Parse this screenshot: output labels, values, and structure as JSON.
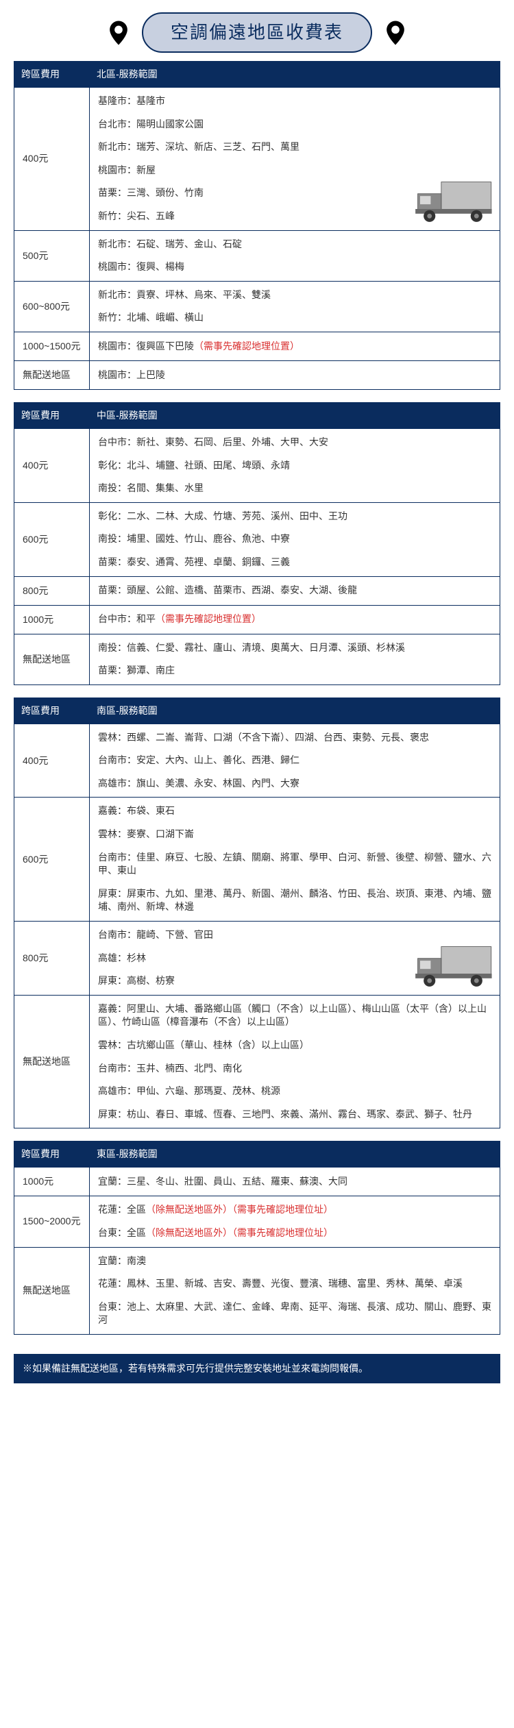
{
  "title": "空調偏遠地區收費表",
  "columns": {
    "fee": "跨區費用",
    "north": "北區-服務範圍",
    "central": "中區-服務範圍",
    "south": "南區-服務範圍",
    "east": "東區-服務範圍"
  },
  "colors": {
    "header_bg": "#0a2c5e",
    "header_text": "#ffffff",
    "title_bg": "#c8d0e0",
    "title_text": "#0a2c5e",
    "border": "#0a2c5e",
    "note_red": "#d93030",
    "truck": "#8a8a8a",
    "truck_body": "#c0c0c0"
  },
  "north": [
    {
      "fee": "400元",
      "truck": true,
      "areas": [
        "基隆市：基隆市",
        "台北市：陽明山國家公園",
        "新北市：瑞芳、深坑、新店、三芝、石門、萬里",
        "桃園市：新屋",
        "苗栗：三灣、頭份、竹南",
        "新竹：尖石、五峰"
      ]
    },
    {
      "fee": "500元",
      "areas": [
        "新北市：石碇、瑞芳、金山、石碇",
        "桃園市：復興、楊梅"
      ]
    },
    {
      "fee": "600~800元",
      "areas": [
        "新北市：貢寮、坪林、烏來、平溪、雙溪",
        "新竹：北埔、峨嵋、橫山"
      ]
    },
    {
      "fee": "1000~1500元",
      "areas": [
        {
          "text": "桃園市：復興區下巴陵",
          "note": "（需事先確認地理位置）"
        }
      ]
    },
    {
      "fee": "無配送地區",
      "areas": [
        "桃園市：上巴陵"
      ]
    }
  ],
  "central": [
    {
      "fee": "400元",
      "areas": [
        "台中市：新社、東勢、石岡、后里、外埔、大甲、大安",
        "彰化：北斗、埔鹽、社頭、田尾、埤頭、永靖",
        "南投：名間、集集、水里"
      ]
    },
    {
      "fee": "600元",
      "areas": [
        "彰化：二水、二林、大成、竹塘、芳苑、溪州、田中、王功",
        "南投：埔里、國姓、竹山、鹿谷、魚池、中寮",
        "苗栗：泰安、通霄、苑裡、卓蘭、銅鑼、三義"
      ]
    },
    {
      "fee": "800元",
      "areas": [
        "苗栗：頭屋、公館、造橋、苗栗市、西湖、泰安、大湖、後龍"
      ]
    },
    {
      "fee": "1000元",
      "areas": [
        {
          "text": "台中市：和平",
          "note": "（需事先確認地理位置）"
        }
      ]
    },
    {
      "fee": "無配送地區",
      "areas": [
        "南投：信義、仁愛、霧社、廬山、清境、奧萬大、日月潭、溪頭、杉林溪",
        "苗栗：獅潭、南庄"
      ]
    }
  ],
  "south": [
    {
      "fee": "400元",
      "areas": [
        "雲林：西螺、二崙、崙背、口湖（不含下崙）、四湖、台西、東勢、元長、褒忠",
        "台南市：安定、大內、山上、善化、西港、歸仁",
        "高雄市：旗山、美濃、永安、林園、內門、大寮"
      ]
    },
    {
      "fee": "600元",
      "areas": [
        "嘉義：布袋、東石",
        "雲林：麥寮、口湖下崙",
        "台南市：佳里、麻豆、七股、左鎮、關廟、將軍、學甲、白河、新營、後壁、柳營、鹽水、六甲、東山",
        "屏東：屏東市、九如、里港、萬丹、新園、潮州、麟洛、竹田、長治、崁頂、東港、內埔、鹽埔、南州、新埤、林邊"
      ]
    },
    {
      "fee": "800元",
      "truck": true,
      "areas": [
        "台南市：龍崎、下營、官田",
        "高雄：杉林",
        "屏東：高樹、枋寮"
      ]
    },
    {
      "fee": "無配送地區",
      "areas": [
        "嘉義：阿里山、大埔、番路鄉山區（觸口（不含）以上山區）、梅山山區（太平（含）以上山區）、竹崎山區（樟音瀑布（不含）以上山區）",
        "雲林：古坑鄉山區（華山、桂林（含）以上山區）",
        "台南市：玉井、楠西、北門、南化",
        "高雄市：甲仙、六龜、那瑪夏、茂林、桃源",
        "屏東：枋山、春日、車城、恆春、三地門、來義、滿州、霧台、瑪家、泰武、獅子、牡丹"
      ]
    }
  ],
  "east": [
    {
      "fee": "1000元",
      "areas": [
        "宜蘭：三星、冬山、壯圍、員山、五結、羅東、蘇澳、大同"
      ]
    },
    {
      "fee": "1500~2000元",
      "areas": [
        {
          "text": "花蓮：全區",
          "note": "（除無配送地區外）（需事先確認地理位址）"
        },
        {
          "text": "台東：全區",
          "note": "（除無配送地區外）（需事先確認地理位址）"
        }
      ]
    },
    {
      "fee": "無配送地區",
      "areas": [
        "宜蘭：南澳",
        "花蓮：鳳林、玉里、新城、吉安、壽豐、光復、豐濱、瑞穗、富里、秀林、萬榮、卓溪",
        "台東：池上、太麻里、大武、達仁、金峰、卑南、延平、海瑞、長濱、成功、關山、鹿野、東河"
      ]
    }
  ],
  "footer": "※如果備註無配送地區，若有特殊需求可先行提供完整安裝地址並來電詢問報價。"
}
